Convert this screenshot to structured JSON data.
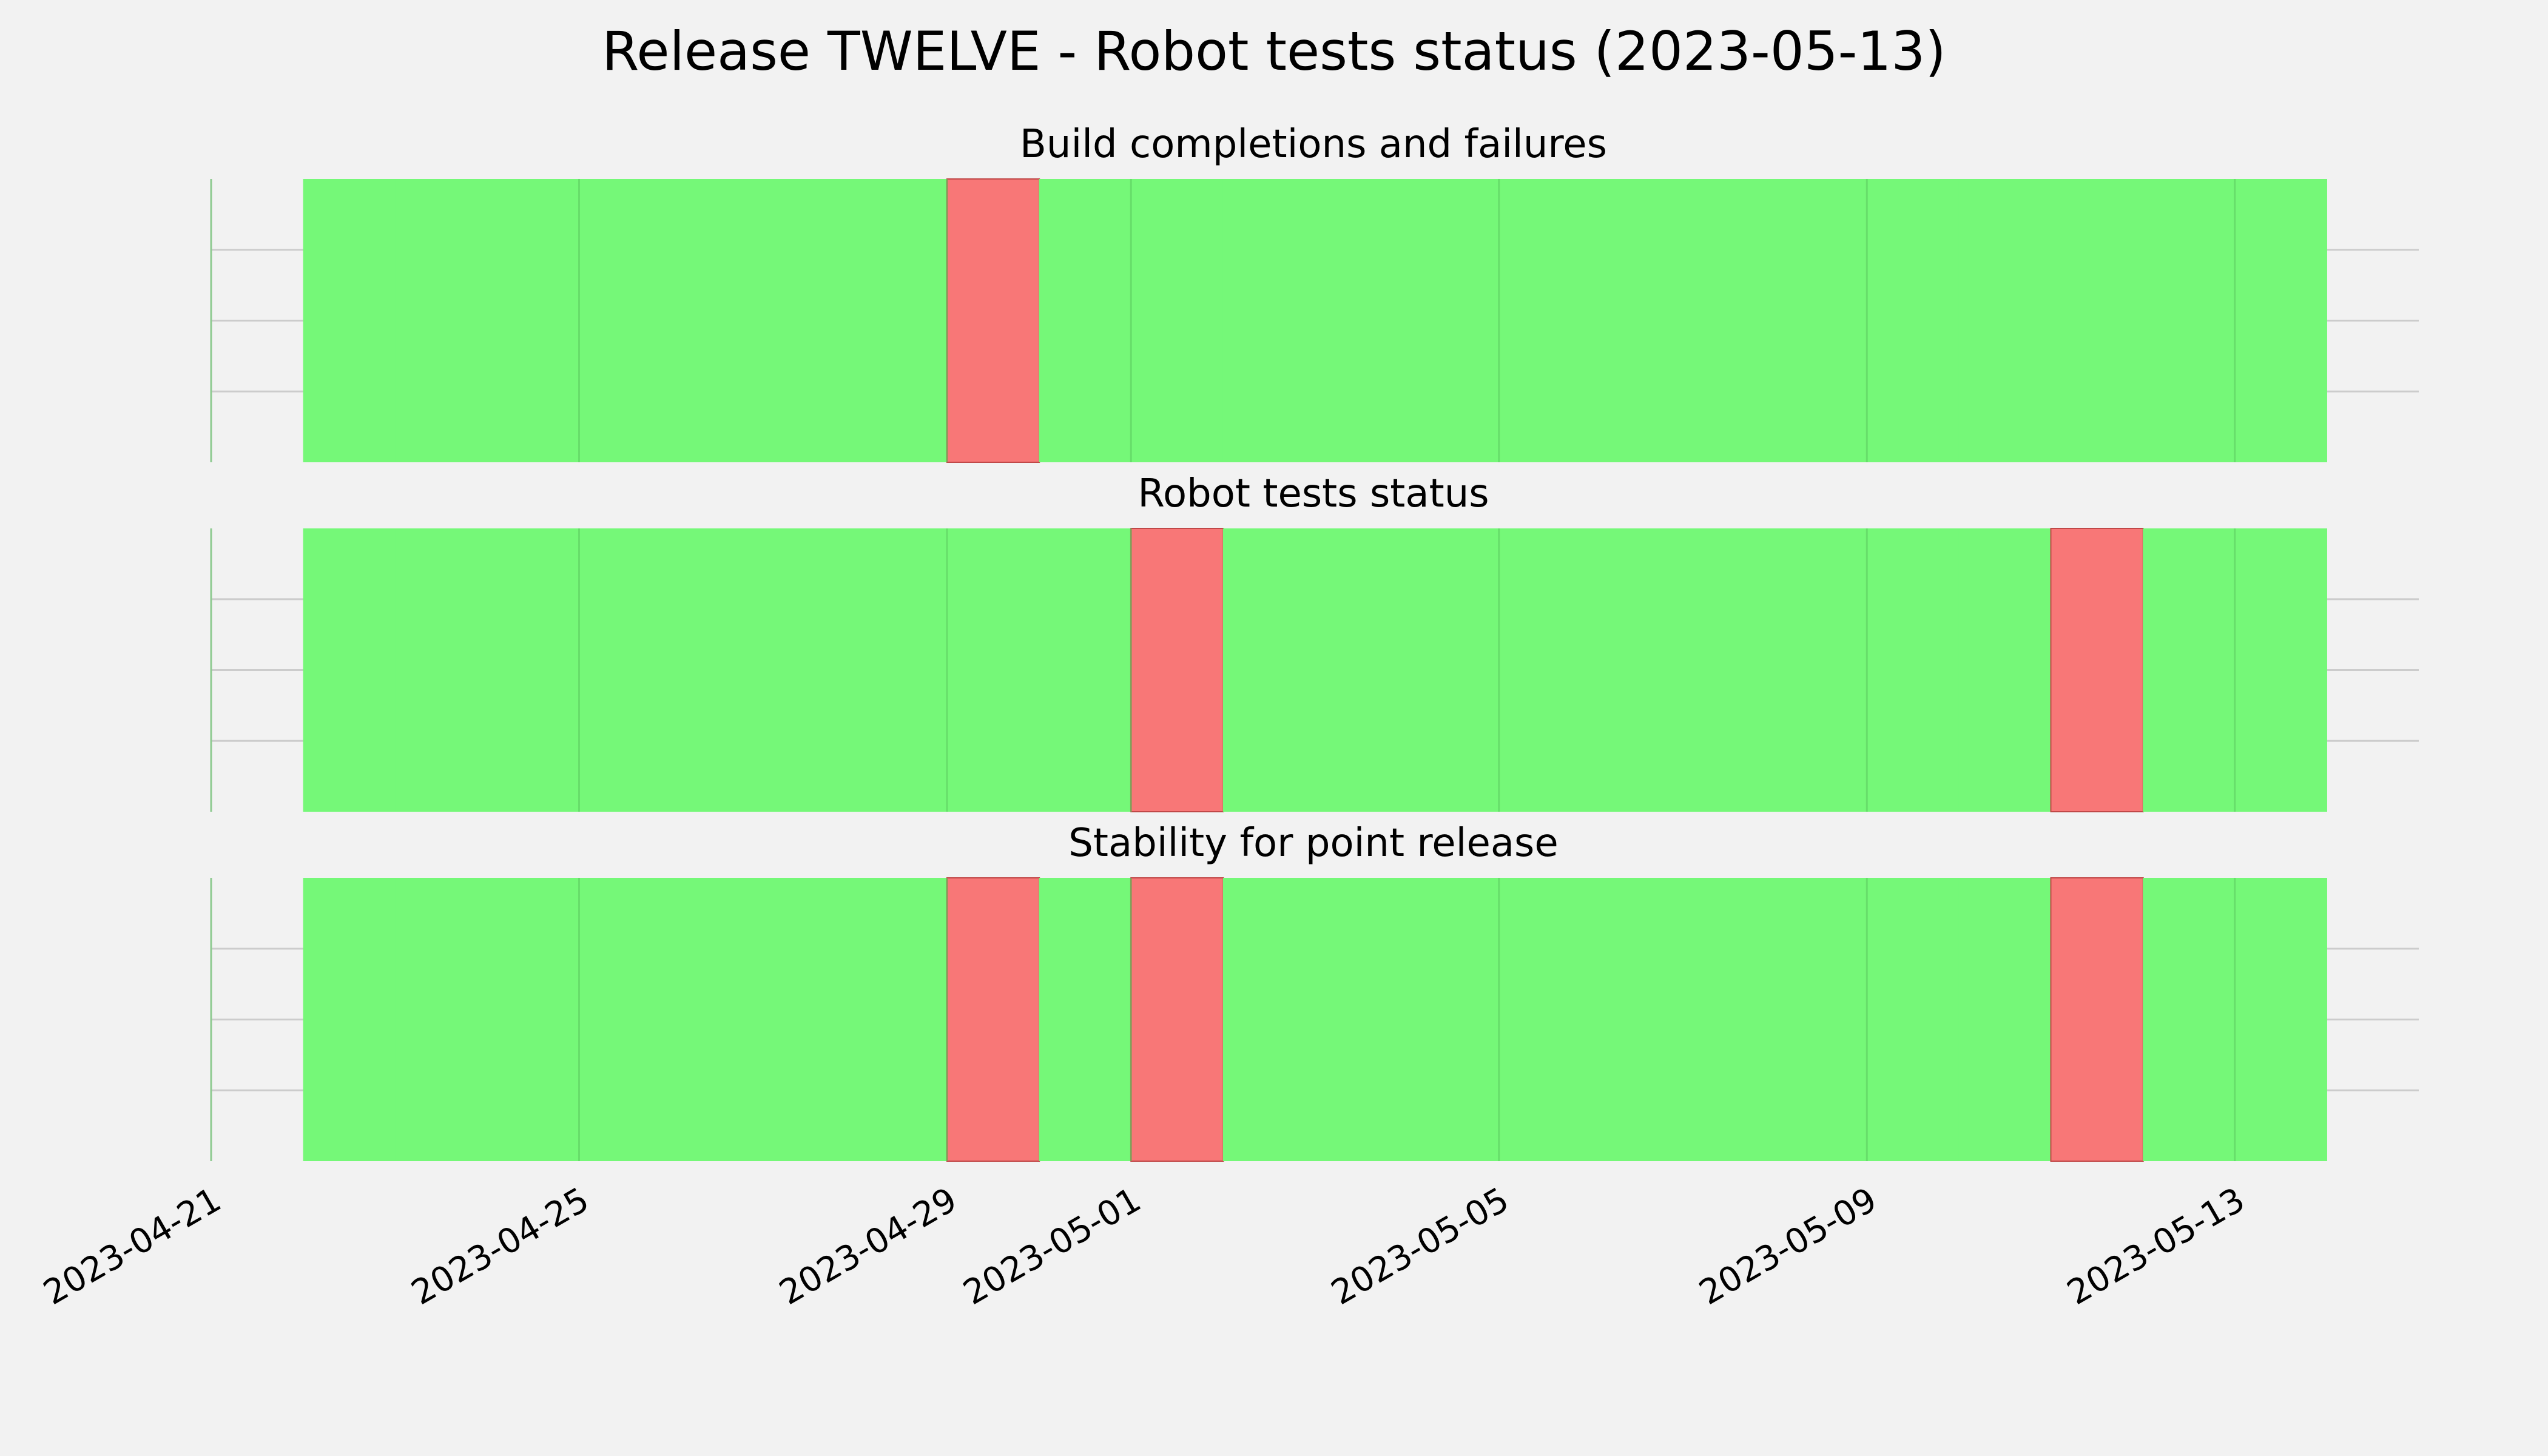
{
  "chart_data": {
    "type": "timeline",
    "title": "Release TWELVE - Robot tests status (2023-05-13)",
    "x_axis": {
      "type": "date",
      "range": [
        "2023-04-21",
        "2023-05-15"
      ],
      "ticks": [
        "2023-04-21",
        "2023-04-25",
        "2023-04-29",
        "2023-05-01",
        "2023-05-05",
        "2023-05-09",
        "2023-05-13"
      ]
    },
    "y_axis": {
      "tick_labels": [],
      "gridlines": 3
    },
    "grid": true,
    "colors": {
      "pass": "#75f878",
      "fail": "#f87777",
      "background": "#f2f2f2",
      "grid": "#cccccc"
    },
    "panels": [
      {
        "title": "Build completions and failures",
        "days": [
          {
            "date": "2023-04-22",
            "status": "pass"
          },
          {
            "date": "2023-04-23",
            "status": "pass"
          },
          {
            "date": "2023-04-24",
            "status": "pass"
          },
          {
            "date": "2023-04-25",
            "status": "pass"
          },
          {
            "date": "2023-04-26",
            "status": "pass"
          },
          {
            "date": "2023-04-27",
            "status": "pass"
          },
          {
            "date": "2023-04-28",
            "status": "pass"
          },
          {
            "date": "2023-04-29",
            "status": "fail"
          },
          {
            "date": "2023-04-30",
            "status": "pass"
          },
          {
            "date": "2023-05-01",
            "status": "pass"
          },
          {
            "date": "2023-05-02",
            "status": "pass"
          },
          {
            "date": "2023-05-03",
            "status": "pass"
          },
          {
            "date": "2023-05-04",
            "status": "pass"
          },
          {
            "date": "2023-05-05",
            "status": "pass"
          },
          {
            "date": "2023-05-06",
            "status": "pass"
          },
          {
            "date": "2023-05-07",
            "status": "pass"
          },
          {
            "date": "2023-05-08",
            "status": "pass"
          },
          {
            "date": "2023-05-09",
            "status": "pass"
          },
          {
            "date": "2023-05-10",
            "status": "pass"
          },
          {
            "date": "2023-05-11",
            "status": "pass"
          },
          {
            "date": "2023-05-12",
            "status": "pass"
          },
          {
            "date": "2023-05-13",
            "status": "pass"
          }
        ]
      },
      {
        "title": "Robot tests status",
        "days": [
          {
            "date": "2023-04-22",
            "status": "pass"
          },
          {
            "date": "2023-04-23",
            "status": "pass"
          },
          {
            "date": "2023-04-24",
            "status": "pass"
          },
          {
            "date": "2023-04-25",
            "status": "pass"
          },
          {
            "date": "2023-04-26",
            "status": "pass"
          },
          {
            "date": "2023-04-27",
            "status": "pass"
          },
          {
            "date": "2023-04-28",
            "status": "pass"
          },
          {
            "date": "2023-04-29",
            "status": "pass"
          },
          {
            "date": "2023-04-30",
            "status": "pass"
          },
          {
            "date": "2023-05-01",
            "status": "fail"
          },
          {
            "date": "2023-05-02",
            "status": "pass"
          },
          {
            "date": "2023-05-03",
            "status": "pass"
          },
          {
            "date": "2023-05-04",
            "status": "pass"
          },
          {
            "date": "2023-05-05",
            "status": "pass"
          },
          {
            "date": "2023-05-06",
            "status": "pass"
          },
          {
            "date": "2023-05-07",
            "status": "pass"
          },
          {
            "date": "2023-05-08",
            "status": "pass"
          },
          {
            "date": "2023-05-09",
            "status": "pass"
          },
          {
            "date": "2023-05-10",
            "status": "pass"
          },
          {
            "date": "2023-05-11",
            "status": "fail"
          },
          {
            "date": "2023-05-12",
            "status": "pass"
          },
          {
            "date": "2023-05-13",
            "status": "pass"
          }
        ]
      },
      {
        "title": "Stability for point release",
        "days": [
          {
            "date": "2023-04-22",
            "status": "pass"
          },
          {
            "date": "2023-04-23",
            "status": "pass"
          },
          {
            "date": "2023-04-24",
            "status": "pass"
          },
          {
            "date": "2023-04-25",
            "status": "pass"
          },
          {
            "date": "2023-04-26",
            "status": "pass"
          },
          {
            "date": "2023-04-27",
            "status": "pass"
          },
          {
            "date": "2023-04-28",
            "status": "pass"
          },
          {
            "date": "2023-04-29",
            "status": "fail"
          },
          {
            "date": "2023-04-30",
            "status": "pass"
          },
          {
            "date": "2023-05-01",
            "status": "fail"
          },
          {
            "date": "2023-05-02",
            "status": "pass"
          },
          {
            "date": "2023-05-03",
            "status": "pass"
          },
          {
            "date": "2023-05-04",
            "status": "pass"
          },
          {
            "date": "2023-05-05",
            "status": "pass"
          },
          {
            "date": "2023-05-06",
            "status": "pass"
          },
          {
            "date": "2023-05-07",
            "status": "pass"
          },
          {
            "date": "2023-05-08",
            "status": "pass"
          },
          {
            "date": "2023-05-09",
            "status": "pass"
          },
          {
            "date": "2023-05-10",
            "status": "pass"
          },
          {
            "date": "2023-05-11",
            "status": "fail"
          },
          {
            "date": "2023-05-12",
            "status": "pass"
          },
          {
            "date": "2023-05-13",
            "status": "pass"
          }
        ]
      }
    ]
  }
}
